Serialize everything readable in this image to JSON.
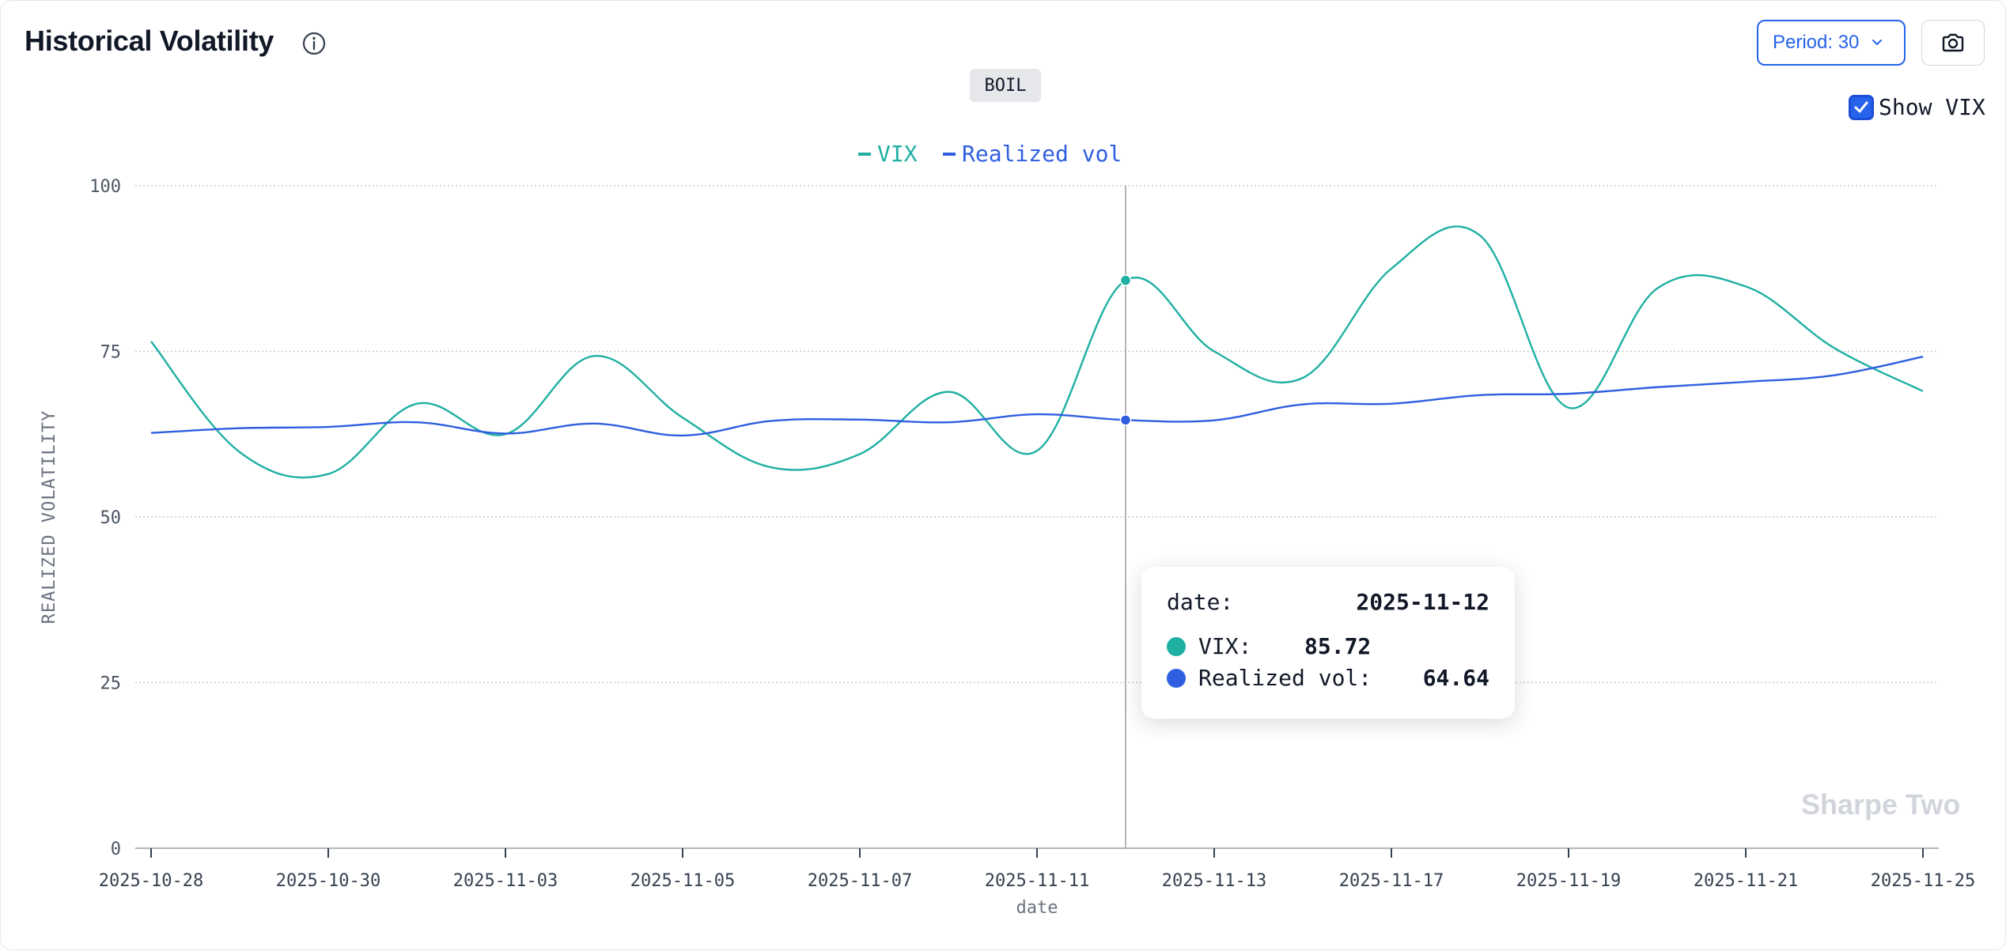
{
  "header": {
    "title": "Historical Volatility",
    "period_label": "Period: 30",
    "ticker": "BOIL",
    "show_vix_label": "Show VIX",
    "show_vix_checked": true
  },
  "tooltip": {
    "date_label": "date:",
    "date_value": "2025-11-12",
    "vix_label": "VIX:",
    "vix_value": "85.72",
    "rv_label": "Realized vol:",
    "rv_value": "64.64"
  },
  "watermark": "Sharpe Two",
  "colors": {
    "vix": "#1fb0a3",
    "realized": "#2f5fe0",
    "accent": "#2563eb"
  },
  "chart_data": {
    "type": "line",
    "xlabel": "date",
    "ylabel": "REALIZED VOLATILITY",
    "ylim": [
      0,
      100
    ],
    "yticks": [
      0,
      25,
      50,
      75,
      100
    ],
    "xtick_labels": [
      "2025-10-28",
      "2025-10-30",
      "2025-11-03",
      "2025-11-05",
      "2025-11-07",
      "2025-11-11",
      "2025-11-13",
      "2025-11-17",
      "2025-11-19",
      "2025-11-21",
      "2025-11-25"
    ],
    "x": [
      "2025-10-28",
      "2025-10-29",
      "2025-10-30",
      "2025-10-31",
      "2025-11-03",
      "2025-11-04",
      "2025-11-05",
      "2025-11-06",
      "2025-11-07",
      "2025-11-10",
      "2025-11-11",
      "2025-11-12",
      "2025-11-13",
      "2025-11-14",
      "2025-11-17",
      "2025-11-18",
      "2025-11-19",
      "2025-11-20",
      "2025-11-21",
      "2025-11-24",
      "2025-11-25"
    ],
    "series": [
      {
        "name": "VIX",
        "values": [
          76.5,
          59.8,
          56.5,
          67.1,
          62.5,
          74.3,
          65.0,
          57.5,
          59.5,
          68.9,
          60.0,
          85.72,
          75.0,
          71.0,
          87.5,
          92.5,
          66.5,
          84.5,
          84.8,
          75.5,
          69.0
        ]
      },
      {
        "name": "Realized vol",
        "values": [
          62.7,
          63.4,
          63.6,
          64.3,
          62.6,
          64.1,
          62.3,
          64.5,
          64.7,
          64.3,
          65.5,
          64.64,
          64.6,
          67.0,
          67.1,
          68.4,
          68.6,
          69.6,
          70.4,
          71.4,
          74.2
        ]
      }
    ],
    "legend": "top-center",
    "grid": "horizontal-dotted",
    "crosshair_x": "2025-11-12"
  }
}
